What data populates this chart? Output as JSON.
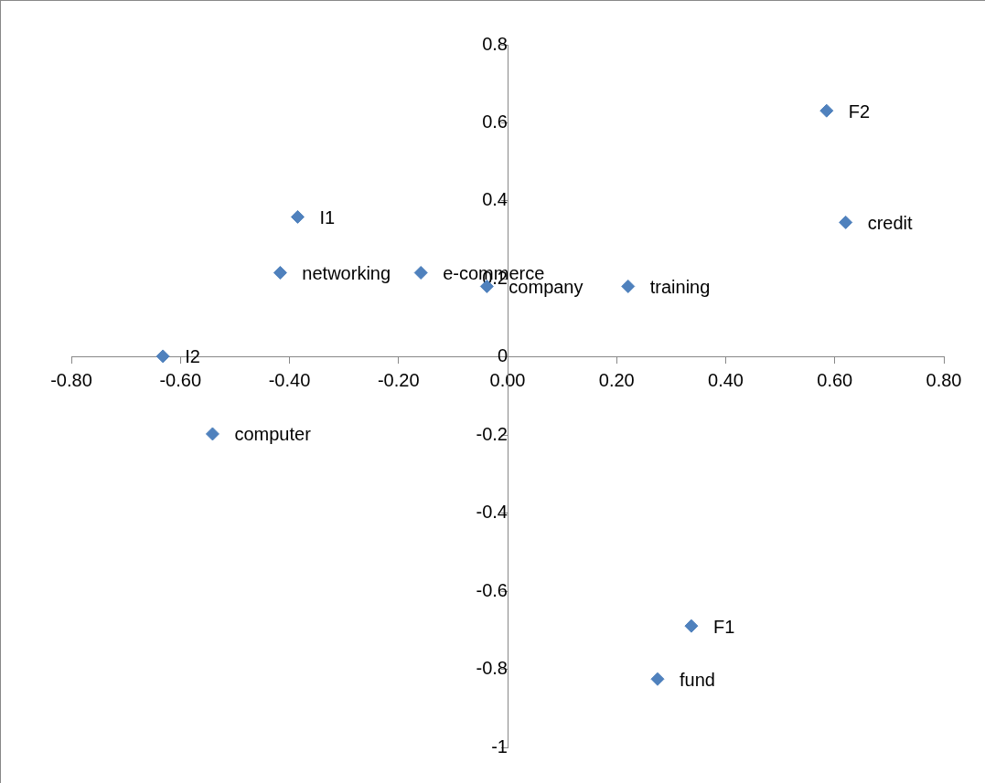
{
  "chart_data": {
    "type": "scatter",
    "marker": "diamond",
    "grid": false,
    "x": [
      0.585,
      0.62,
      0.221,
      -0.038,
      -0.159,
      -0.417,
      -0.385,
      -0.632,
      -0.541,
      0.337,
      0.275
    ],
    "series": [
      {
        "color": "#4f81bd",
        "values": [
          0.631,
          0.345,
          0.181,
          0.181,
          0.216,
          0.216,
          0.359,
          0.002,
          -0.197,
          -0.689,
          -0.825
        ]
      }
    ],
    "xlim": [
      -0.8,
      0.8
    ],
    "xticks": [
      {
        "value": -0.8,
        "label": "-0.80"
      },
      {
        "value": -0.6,
        "label": "-0.60"
      },
      {
        "value": -0.4,
        "label": "-0.40"
      },
      {
        "value": -0.2,
        "label": "-0.20"
      },
      {
        "value": 0,
        "label": "0.00"
      },
      {
        "value": 0.2,
        "label": "0.20"
      },
      {
        "value": 0.4,
        "label": "0.40"
      },
      {
        "value": 0.6,
        "label": "0.60"
      },
      {
        "value": 0.8,
        "label": "0.80"
      }
    ],
    "ylim": [
      -1,
      0.8
    ],
    "yticks": [
      -1,
      -0.8,
      -0.6,
      -0.4,
      -0.2,
      0,
      0.2,
      0.4,
      0.6,
      0.8
    ],
    "annotations": [
      {
        "text": "F2",
        "x": 0.585,
        "y": 0.631
      },
      {
        "text": "credit",
        "x": 0.62,
        "y": 0.345
      },
      {
        "text": "training",
        "x": 0.221,
        "y": 0.181
      },
      {
        "text": "company",
        "x": -0.038,
        "y": 0.181
      },
      {
        "text": "e-commerce",
        "x": -0.159,
        "y": 0.216
      },
      {
        "text": "networking",
        "x": -0.417,
        "y": 0.216
      },
      {
        "text": "I1",
        "x": -0.385,
        "y": 0.359
      },
      {
        "text": "I2",
        "x": -0.632,
        "y": 0.002
      },
      {
        "text": "computer",
        "x": -0.541,
        "y": -0.197
      },
      {
        "text": "F1",
        "x": 0.337,
        "y": -0.689
      },
      {
        "text": "fund",
        "x": 0.275,
        "y": -0.825
      }
    ]
  }
}
